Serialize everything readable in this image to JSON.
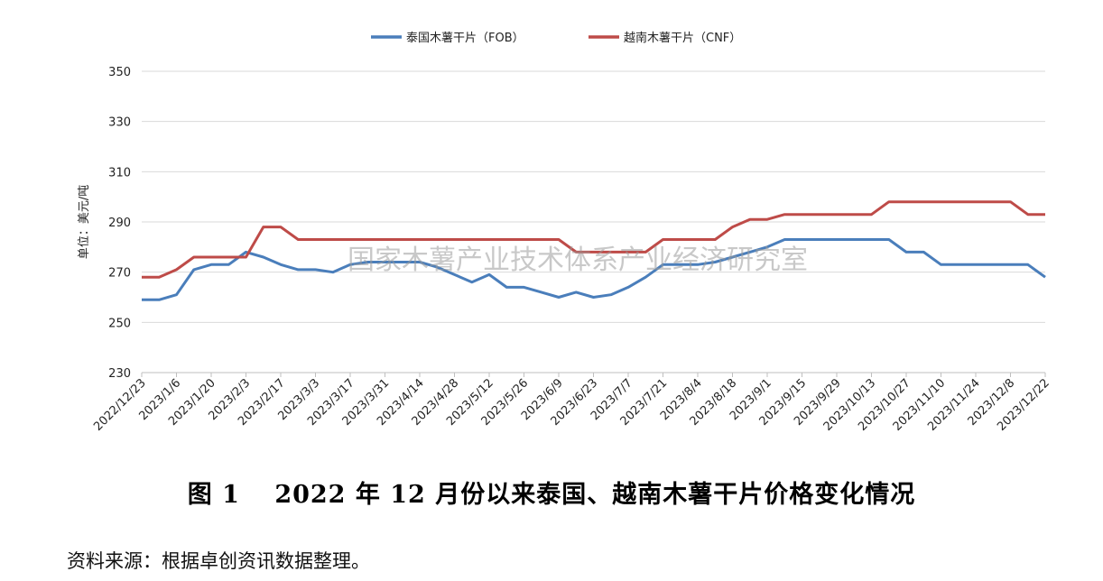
{
  "chart_data": {
    "type": "line",
    "ylabel": "单位：美元/吨",
    "ylim": [
      230,
      350
    ],
    "yticks": [
      230,
      250,
      270,
      290,
      310,
      330,
      350
    ],
    "grid": true,
    "legend_position": "top-center",
    "x_tick_labels": [
      "2022/12/23",
      "2023/1/6",
      "2023/1/20",
      "2023/2/3",
      "2023/2/17",
      "2023/3/3",
      "2023/3/17",
      "2023/3/31",
      "2023/4/14",
      "2023/4/28",
      "2023/5/12",
      "2023/5/26",
      "2023/6/9",
      "2023/6/23",
      "2023/7/7",
      "2023/7/21",
      "2023/8/4",
      "2023/8/18",
      "2023/9/1",
      "2023/9/15",
      "2023/9/29",
      "2023/10/13",
      "2023/10/27",
      "2023/11/10",
      "2023/11/24",
      "2023/12/8",
      "2023/12/22"
    ],
    "series": [
      {
        "name": "泰国木薯干片（FOB）",
        "color": "#4a7ebb",
        "values": [
          259,
          259,
          261,
          271,
          273,
          273,
          278,
          276,
          273,
          271,
          271,
          270,
          273,
          274,
          274,
          274,
          274,
          272,
          269,
          266,
          269,
          264,
          264,
          262,
          260,
          262,
          260,
          261,
          264,
          268,
          273,
          273,
          273,
          274,
          276,
          278,
          280,
          283,
          283,
          283,
          283,
          283,
          283,
          283,
          278,
          278,
          273,
          273,
          273,
          273,
          273,
          273,
          268
        ]
      },
      {
        "name": "越南木薯干片（CNF）",
        "color": "#be4b48",
        "values": [
          268,
          268,
          271,
          276,
          276,
          276,
          276,
          288,
          288,
          283,
          283,
          283,
          283,
          283,
          283,
          283,
          283,
          283,
          283,
          283,
          283,
          283,
          283,
          283,
          283,
          278,
          278,
          278,
          278,
          278,
          283,
          283,
          283,
          283,
          288,
          291,
          291,
          293,
          293,
          293,
          293,
          293,
          293,
          298,
          298,
          298,
          298,
          298,
          298,
          298,
          298,
          293,
          293
        ]
      }
    ]
  },
  "watermark": "国家木薯产业技术体系产业经济研究室",
  "caption": "图 1　 2022 年 12 月份以来泰国、越南木薯干片价格变化情况",
  "source": "资料来源：根据卓创资讯数据整理。"
}
